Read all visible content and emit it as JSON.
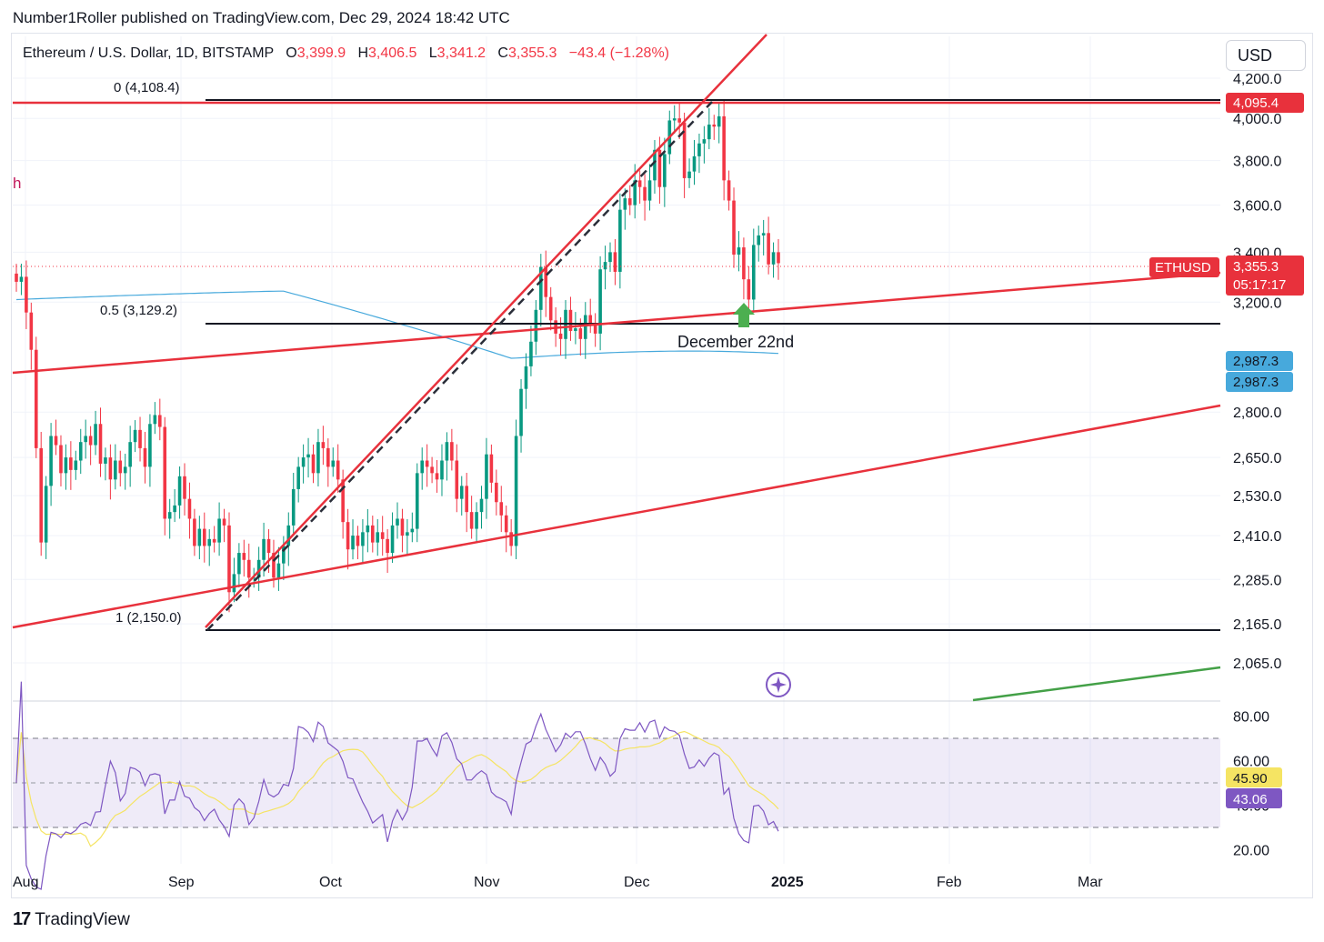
{
  "header": {
    "publisher": "Number1Roller published on TradingView.com, Dec 29, 2024 18:42 UTC"
  },
  "symbol": {
    "title": "Ethereum / U.S. Dollar, 1D, BITSTAMP",
    "open_label": "O",
    "open": "3,399.9",
    "high_label": "H",
    "high": "3,406.5",
    "low_label": "L",
    "low": "3,341.2",
    "close_label": "C",
    "close": "3,355.3",
    "change": "−43.4 (−1.28%)"
  },
  "currency_button": "USD",
  "footer": {
    "logo": "17",
    "brand": "TradingView"
  },
  "annotations": {
    "left_marker": "h",
    "december_label": "December 22nd",
    "fib_0": "0 (4,108.4)",
    "fib_05": "0.5 (3,129.2)",
    "fib_1": "1 (2,150.0)"
  },
  "price_badges": {
    "resistance": "4,095.4",
    "symbol": "ETHUSD",
    "last": "3,355.3",
    "countdown": "05:17:17",
    "ma_a": "2,987.3",
    "ma_b": "2,987.3",
    "rsi_ma": "45.90",
    "rsi": "43.06"
  },
  "colors": {
    "up": "#089981",
    "down": "#f23645",
    "trendline": "#e8313c",
    "fib_line": "#131722",
    "ma": "#47a9dc",
    "rsi": "#7e57c2",
    "rsi_ma": "#f5e463",
    "green_line": "#43a047",
    "arrow": "#4caf50"
  },
  "chart_data": [
    {
      "type": "candlestick",
      "title": "Ethereum / U.S. Dollar, 1D, BITSTAMP",
      "x_ticks": [
        "Aug",
        "Sep",
        "Oct",
        "Nov",
        "Dec",
        "2025",
        "Feb",
        "Mar"
      ],
      "y_ticks": [
        4200.0,
        4000.0,
        3800.0,
        3600.0,
        3400.0,
        3200.0,
        2800.0,
        2650.0,
        2530.0,
        2410.0,
        2285.0,
        2165.0,
        2065.0
      ],
      "y_tick_labels": [
        "4,200.0",
        "4,000.0",
        "3,800.0",
        "3,600.0",
        "3,400.0",
        "3,200.0",
        "2,800.0",
        "2,650.0",
        "2,530.0",
        "2,410.0",
        "2,285.0",
        "2,165.0",
        "2,065.0"
      ],
      "y_scale": "log",
      "closes": [
        3280,
        3300,
        3160,
        3020,
        2680,
        2390,
        2560,
        2720,
        2690,
        2600,
        2650,
        2610,
        2640,
        2700,
        2720,
        2690,
        2760,
        2630,
        2650,
        2580,
        2640,
        2600,
        2620,
        2700,
        2740,
        2680,
        2620,
        2760,
        2790,
        2750,
        2460,
        2480,
        2500,
        2590,
        2520,
        2460,
        2380,
        2430,
        2380,
        2400,
        2390,
        2460,
        2440,
        2250,
        2300,
        2360,
        2340,
        2290,
        2290,
        2340,
        2400,
        2360,
        2290,
        2330,
        2380,
        2440,
        2550,
        2620,
        2650,
        2660,
        2600,
        2700,
        2680,
        2620,
        2640,
        2580,
        2450,
        2370,
        2410,
        2380,
        2420,
        2440,
        2390,
        2420,
        2400,
        2360,
        2440,
        2460,
        2410,
        2420,
        2430,
        2600,
        2640,
        2620,
        2600,
        2580,
        2640,
        2700,
        2640,
        2520,
        2560,
        2480,
        2430,
        2480,
        2520,
        2660,
        2570,
        2510,
        2470,
        2420,
        2380,
        2720,
        2880,
        2960,
        3050,
        3170,
        3340,
        3220,
        3130,
        3080,
        3060,
        3170,
        3090,
        3100,
        3060,
        3150,
        3120,
        3080,
        3330,
        3360,
        3400,
        3320,
        3580,
        3630,
        3600,
        3710,
        3680,
        3620,
        3710,
        3850,
        3680,
        3830,
        3990,
        4000,
        3980,
        3720,
        3750,
        3820,
        3880,
        3900,
        3970,
        3960,
        4010,
        3710,
        3620,
        3390,
        3420,
        3290,
        3210,
        3430,
        3470,
        3480,
        3350,
        3400,
        3355
      ],
      "trendlines": [
        {
          "from": [
            "Aug",
            2155
          ],
          "to": [
            "end",
            2820
          ],
          "kind": "ascending"
        },
        {
          "from": [
            "Aug",
            2980
          ],
          "to": [
            "end",
            3260
          ],
          "kind": "ascending"
        },
        {
          "from": [
            "Sep",
            2200
          ],
          "to": [
            "Dec",
            4230
          ],
          "kind": "steep"
        },
        {
          "from": [
            "Feb",
            2040
          ],
          "to": [
            "end",
            2080
          ],
          "kind": "ascending-green"
        }
      ],
      "fib_levels": [
        {
          "ratio": 0,
          "price": 4108.4
        },
        {
          "ratio": 0.5,
          "price": 3129.2
        },
        {
          "ratio": 1,
          "price": 2150.0
        }
      ],
      "horizontal_line": 4095.4,
      "last_price": 3355.3,
      "moving_average": 2987.3
    },
    {
      "type": "line",
      "name": "RSI",
      "y_ticks": [
        80,
        60,
        40,
        20
      ],
      "y_tick_labels": [
        "80.00",
        "60.00",
        "40.00",
        "20.00"
      ],
      "bands": [
        70,
        50,
        30
      ],
      "rsi_last": 43.06,
      "rsi_ma_last": 45.9
    }
  ]
}
